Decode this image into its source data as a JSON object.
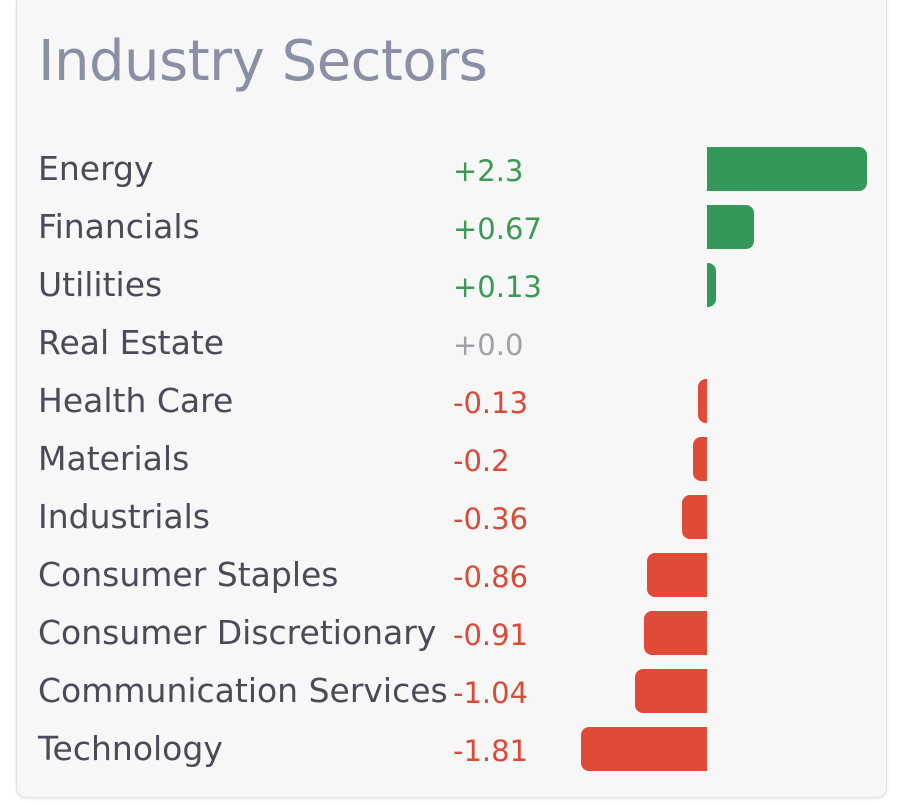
{
  "chart_data": {
    "type": "bar",
    "title": "Industry Sectors",
    "orientation": "horizontal",
    "categories": [
      "Energy",
      "Financials",
      "Utilities",
      "Real Estate",
      "Health Care",
      "Materials",
      "Industrials",
      "Consumer Staples",
      "Consumer Discretionary",
      "Communication Services",
      "Technology"
    ],
    "values": [
      2.3,
      0.67,
      0.13,
      0.0,
      -0.13,
      -0.2,
      -0.36,
      -0.86,
      -0.91,
      -1.04,
      -1.81
    ],
    "value_labels": [
      "+2.3",
      "+0.67",
      "+0.13",
      "+0.0",
      "-0.13",
      "-0.2",
      "-0.36",
      "-0.86",
      "-0.91",
      "-1.04",
      "-1.81"
    ],
    "xlim": [
      -1.81,
      2.3
    ],
    "grid": false,
    "legend": "none"
  },
  "colors": {
    "positive": "#34985a",
    "negative": "#e04b38",
    "positive_text": "#3a9a53",
    "negative_text": "#d94b39",
    "zero_text": "#a0a0a6"
  }
}
